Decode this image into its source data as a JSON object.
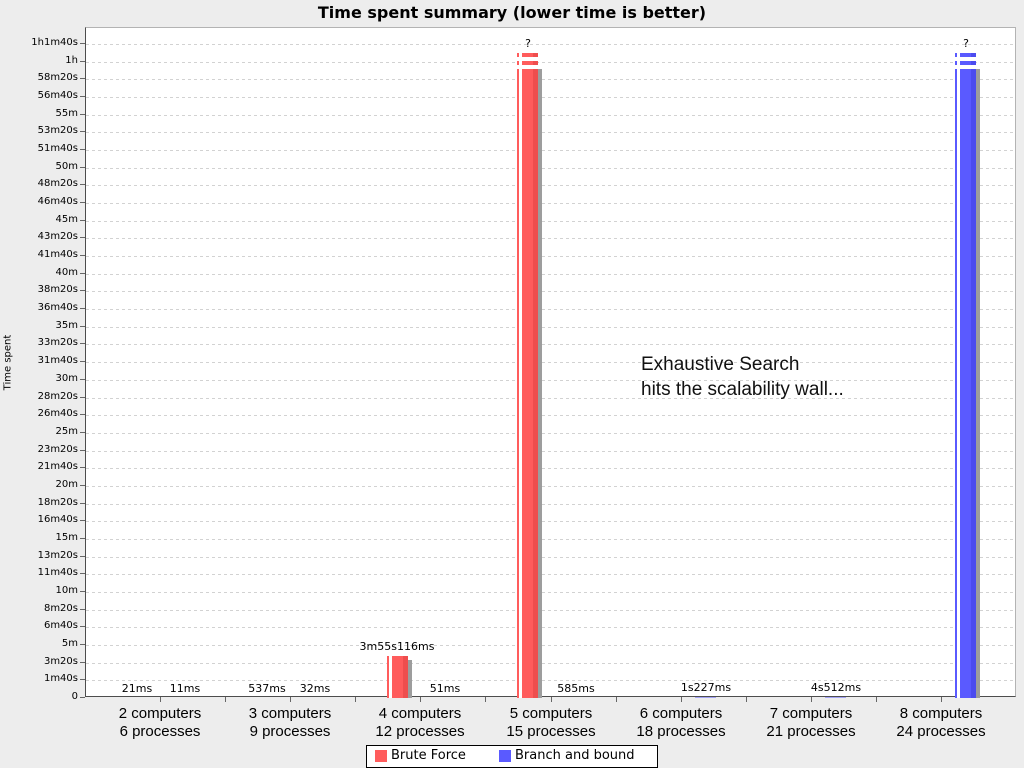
{
  "chart_data": {
    "type": "bar",
    "title": "Time spent summary (lower time is better)",
    "xlabel": "",
    "ylabel": "Time spent",
    "grid": "horizontal-dashed",
    "legend_position": "bottom",
    "ylim_seconds": [
      0,
      3700
    ],
    "ytick_interval_seconds": 100,
    "yticks": [
      "0",
      "1m40s",
      "3m20s",
      "5m",
      "6m40s",
      "8m20s",
      "10m",
      "11m40s",
      "13m20s",
      "15m",
      "16m40s",
      "18m20s",
      "20m",
      "21m40s",
      "23m20s",
      "25m",
      "26m40s",
      "28m20s",
      "30m",
      "31m40s",
      "33m20s",
      "35m",
      "36m40s",
      "38m20s",
      "40m",
      "41m40s",
      "43m20s",
      "45m",
      "46m40s",
      "48m20s",
      "50m",
      "51m40s",
      "53m20s",
      "55m",
      "56m40s",
      "58m20s",
      "1h",
      "1h1m40s"
    ],
    "categories": [
      "2 computers\n6 processes",
      "3 computers\n9 processes",
      "4 computers\n12 processes",
      "5 computers\n15 processes",
      "6 computers\n18 processes",
      "7 computers\n21 processes",
      "8 computers\n24 processes"
    ],
    "series": [
      {
        "name": "Brute Force",
        "color": "#ff5c5c",
        "color_dark": "#ef4e4e",
        "values": [
          {
            "ms": 21,
            "label": "21ms"
          },
          {
            "ms": 537,
            "label": "537ms"
          },
          {
            "ms": 235116,
            "label": "3m55s116ms"
          },
          {
            "cut": true,
            "label": "?"
          },
          null,
          null,
          null
        ]
      },
      {
        "name": "Branch and bound",
        "color": "#5a5aff",
        "color_dark": "#4c4cef",
        "values": [
          {
            "ms": 11,
            "label": "11ms"
          },
          {
            "ms": 32,
            "label": "32ms"
          },
          {
            "ms": 51,
            "label": "51ms"
          },
          {
            "ms": 585,
            "label": "585ms"
          },
          {
            "ms": 1227,
            "label": "1s227ms"
          },
          {
            "ms": 4512,
            "label": "4s512ms"
          },
          {
            "cut": true,
            "label": "?"
          }
        ]
      }
    ],
    "annotations": [
      "Exhaustive Search",
      "hits the scalability wall..."
    ]
  }
}
